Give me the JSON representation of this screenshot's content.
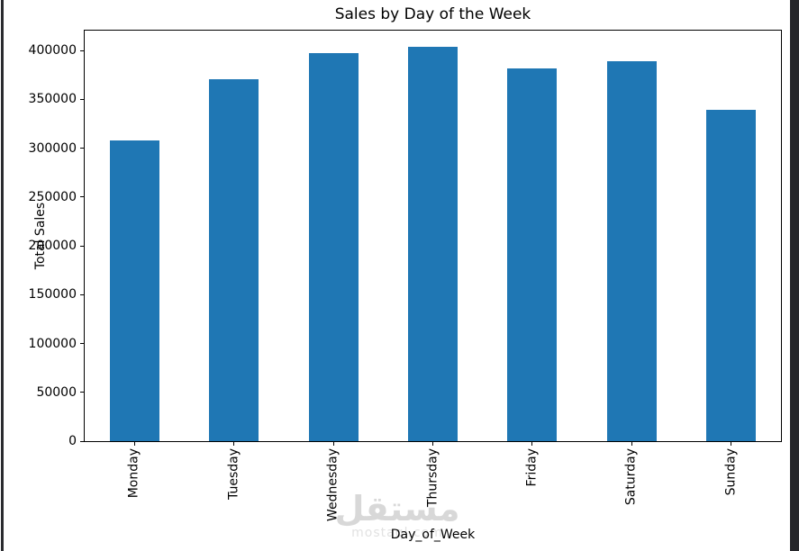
{
  "frame": {
    "left_strip_color": "#2a2b2f",
    "right_strip_color": "#25262a"
  },
  "chart_data": {
    "type": "bar",
    "title": "Sales by Day of the Week",
    "xlabel": "Day_of_Week",
    "ylabel": "Total Sales",
    "categories": [
      "Monday",
      "Tuesday",
      "Wednesday",
      "Thursday",
      "Friday",
      "Saturday",
      "Sunday"
    ],
    "values": [
      308000,
      371000,
      397000,
      404000,
      382000,
      389000,
      339000
    ],
    "yticks": [
      0,
      50000,
      100000,
      150000,
      200000,
      250000,
      300000,
      350000,
      400000
    ],
    "ylim": [
      0,
      420500
    ],
    "bar_color": "#1f77b4",
    "bar_width_ratio": 0.498,
    "grid": false,
    "legend": "none",
    "x_tick_rotation_deg": 90
  },
  "watermark": {
    "line1": "مستقل",
    "line2": "mostaql.com",
    "line1_color": "#d8d8d8",
    "line2_color": "#e2e2e2"
  }
}
